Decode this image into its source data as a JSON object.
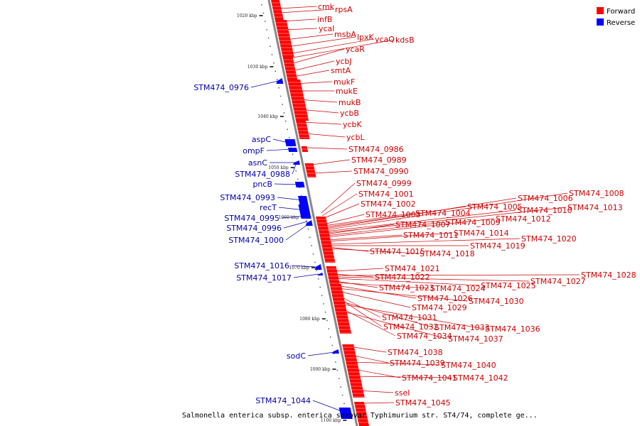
{
  "colors": {
    "forward": "#ff0000",
    "reverse": "#0000ff",
    "backbone": "#888888",
    "forward_label": "#cc0000",
    "reverse_label": "#0000aa"
  },
  "legend": {
    "forward": "Forward",
    "reverse": "Reverse"
  },
  "caption": "Salmonella enterica subsp. enterica serovar Typhimurium str. ST4/74, complete ge...",
  "ticks": [
    "1020 kbp",
    "1030 kbp",
    "1040 kbp",
    "1050 kbp",
    "1060 kbp",
    "1070 kbp",
    "1080 kbp",
    "1090 kbp",
    "1100 kbp"
  ],
  "forward_labels": [
    "cmk",
    "rpsA",
    "infB",
    "ycaI",
    "msbA",
    "lpxK",
    "ycaQ",
    "kdsB",
    "ycaR",
    "ycbJ",
    "smtA",
    "mukF",
    "mukE",
    "mukB",
    "ycbB",
    "ycbK",
    "ycbL",
    "STM474_0986",
    "STM474_0989",
    "STM474_0990",
    "STM474_0999",
    "STM474_1001",
    "STM474_1002",
    "STM474_1003",
    "STM474_1004",
    "STM474_1005",
    "STM474_1006",
    "STM474_1008",
    "STM474_1010",
    "STM474_1013",
    "STM474_1007",
    "STM474_1009",
    "STM474_1012",
    "STM474_1011",
    "STM474_1014",
    "STM474_1020",
    "STM474_1019",
    "STM474_1015",
    "STM474_1018",
    "STM474_1021",
    "STM474_1022",
    "STM474_1028",
    "STM474_1027",
    "STM474_1025",
    "STM474_1023",
    "STM474_1024",
    "STM474_1026",
    "STM474_1030",
    "STM474_1029",
    "STM474_1031",
    "STM474_1032",
    "STM474_1033",
    "STM474_1036",
    "STM474_1034",
    "STM474_1037",
    "STM474_1038",
    "STM474_1039",
    "STM474_1040",
    "STM474_1041",
    "STM474_1042",
    "sseI",
    "STM474_1045"
  ],
  "reverse_labels": [
    "STM474_0976",
    "aspC",
    "ompF",
    "asnC",
    "STM474_0988",
    "pncB",
    "STM474_0993",
    "recT",
    "STM474_0995",
    "STM474_0996",
    "STM474_1000",
    "STM474_1016",
    "STM474_1017",
    "sodC",
    "STM474_1044"
  ]
}
